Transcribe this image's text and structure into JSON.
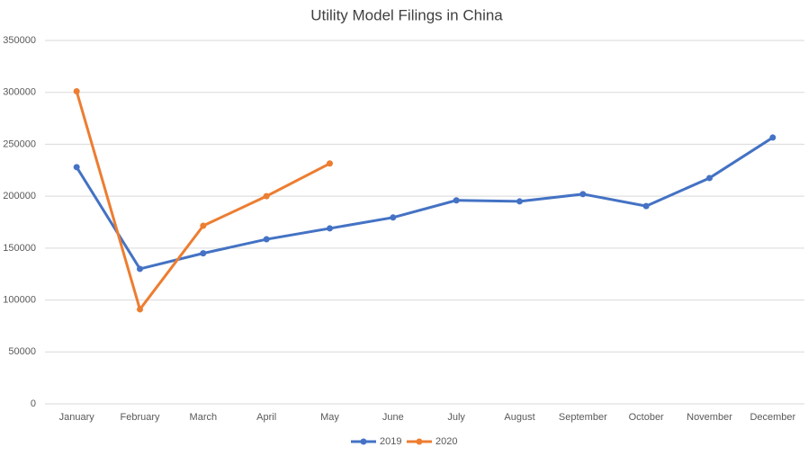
{
  "chart_data": {
    "type": "line",
    "title": "Utility Model Filings in China",
    "categories": [
      "January",
      "February",
      "March",
      "April",
      "May",
      "June",
      "July",
      "August",
      "September",
      "October",
      "November",
      "December"
    ],
    "series": [
      {
        "name": "2019",
        "color": "#4472c4",
        "values": [
          228000,
          130000,
          145000,
          158500,
          169000,
          179500,
          196000,
          195000,
          202000,
          190500,
          217500,
          256500
        ]
      },
      {
        "name": "2020",
        "color": "#ed7d31",
        "values": [
          301000,
          91000,
          171500,
          200000,
          231500,
          null,
          null,
          null,
          null,
          null,
          null,
          null
        ]
      }
    ],
    "ylim": [
      0,
      350000
    ],
    "yticks": [
      0,
      50000,
      100000,
      150000,
      200000,
      250000,
      300000,
      350000
    ],
    "grid": true,
    "legend": "bottom"
  }
}
